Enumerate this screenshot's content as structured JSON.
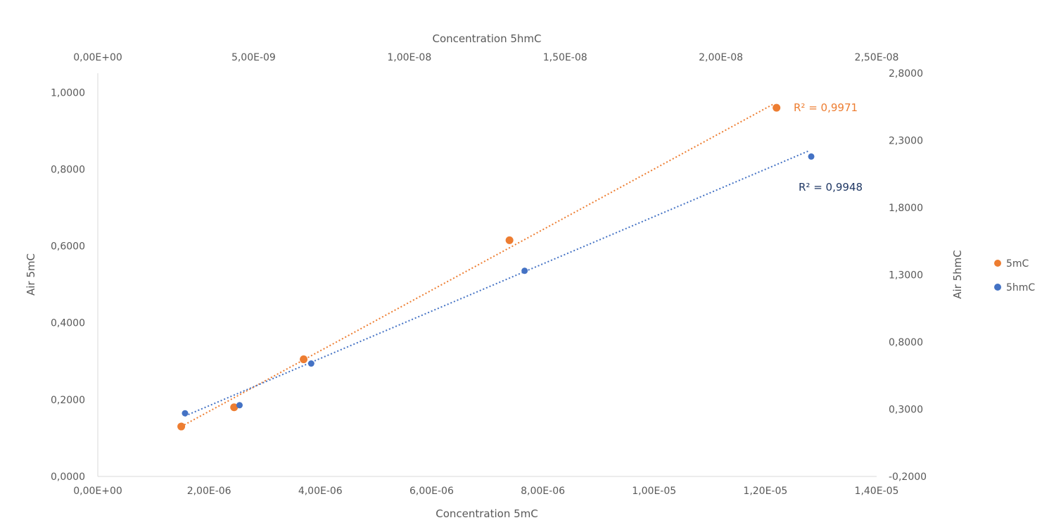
{
  "chart_data": {
    "type": "scatter",
    "grid": false,
    "legend_position": "right",
    "axes": {
      "x_bottom": {
        "label": "Concentration 5mC",
        "range": [
          0,
          1.4e-05
        ],
        "ticks": [
          0,
          2e-06,
          4e-06,
          6e-06,
          8e-06,
          1e-05,
          1.2e-05,
          1.4e-05
        ],
        "tick_labels": [
          "0,00E+00",
          "2,00E-06",
          "4,00E-06",
          "6,00E-06",
          "8,00E-06",
          "1,00E-05",
          "1,20E-05",
          "1,40E-05"
        ]
      },
      "x_top": {
        "label": "Concentration 5hmC",
        "range": [
          0,
          2.5e-08
        ],
        "ticks": [
          0,
          5e-09,
          1e-08,
          1.5e-08,
          2e-08,
          2.5e-08
        ],
        "tick_labels": [
          "0,00E+00",
          "5,00E-09",
          "1,00E-08",
          "1,50E-08",
          "2,00E-08",
          "2,50E-08"
        ]
      },
      "y_left": {
        "label": "Air 5mC",
        "range": [
          0,
          1.05
        ],
        "ticks": [
          0,
          0.2,
          0.4,
          0.6,
          0.8,
          1.0
        ],
        "tick_labels": [
          "0,0000",
          "0,2000",
          "0,4000",
          "0,6000",
          "0,8000",
          "1,0000"
        ]
      },
      "y_right": {
        "label": "Air 5hmC",
        "range": [
          -0.2,
          2.8
        ],
        "ticks": [
          -0.2,
          0.3,
          0.8,
          1.3,
          1.8,
          2.3,
          2.8
        ],
        "tick_labels": [
          "-0,2000",
          "0,3000",
          "0,8000",
          "1,3000",
          "1,8000",
          "2,3000",
          "2,8000"
        ]
      }
    },
    "series": [
      {
        "name": "5mC",
        "color": "#ED7D31",
        "x_axis": "x_bottom",
        "y_axis": "y_left",
        "points": [
          {
            "x": 1.5e-06,
            "y": 0.13
          },
          {
            "x": 2.45e-06,
            "y": 0.18
          },
          {
            "x": 3.7e-06,
            "y": 0.305
          },
          {
            "x": 7.4e-06,
            "y": 0.615
          },
          {
            "x": 1.22e-05,
            "y": 0.96
          }
        ],
        "trendline": {
          "style": "dotted",
          "from": {
            "x": 1.5e-06,
            "y": 0.13
          },
          "to": {
            "x": 1.215e-05,
            "y": 0.97
          },
          "r2_label": "R² = 0,9971"
        }
      },
      {
        "name": "5hmC",
        "color": "#4472C4",
        "x_axis": "x_top",
        "y_axis": "y_right",
        "points": [
          {
            "x": 2.8e-09,
            "y": 0.27
          },
          {
            "x": 4.55e-09,
            "y": 0.33
          },
          {
            "x": 6.85e-09,
            "y": 0.64
          },
          {
            "x": 1.37e-08,
            "y": 1.33
          },
          {
            "x": 2.29e-08,
            "y": 2.18
          }
        ],
        "trendline": {
          "style": "dotted",
          "from": {
            "x": 2.8e-09,
            "y": 0.25
          },
          "to": {
            "x": 2.28e-08,
            "y": 2.22
          },
          "r2_label": "R² = 0,9948",
          "label_color": "#203864"
        }
      }
    ]
  }
}
